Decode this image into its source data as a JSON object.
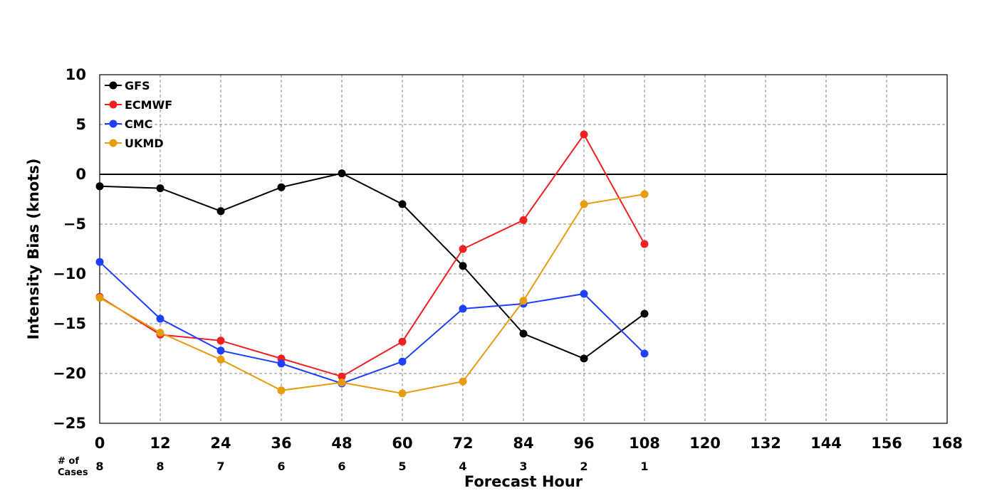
{
  "chart_data": {
    "type": "line",
    "xlabel": "Forecast Hour",
    "ylabel": "Intensity Bias (knots)",
    "xlim": [
      0,
      168
    ],
    "ylim": [
      -25,
      10
    ],
    "xticks": [
      0,
      12,
      24,
      36,
      48,
      60,
      72,
      84,
      96,
      108,
      120,
      132,
      144,
      156,
      168
    ],
    "yticks": [
      10,
      5,
      0,
      -5,
      -10,
      -15,
      -20,
      -25
    ],
    "ytick_labels": [
      "10",
      "5",
      "0",
      "−5",
      "−10",
      "−15",
      "−20",
      "−25"
    ],
    "grid": true,
    "zero_line": true,
    "legend_position": "top-left",
    "x": [
      0,
      12,
      24,
      36,
      48,
      60,
      72,
      84,
      96,
      108
    ],
    "series": [
      {
        "name": "GFS",
        "color": "#000000",
        "values": [
          -1.2,
          -1.4,
          -3.7,
          -1.3,
          0.1,
          -3.0,
          -9.2,
          -16.0,
          -18.5,
          -14.0
        ]
      },
      {
        "name": "ECMWF",
        "color": "#f02020",
        "values": [
          -12.3,
          -16.1,
          -16.7,
          -18.5,
          -20.3,
          -16.8,
          -7.5,
          -4.6,
          4.0,
          -7.0
        ]
      },
      {
        "name": "CMC",
        "color": "#1f3fff",
        "values": [
          -8.8,
          -14.5,
          -17.7,
          -19.0,
          -21.0,
          -18.8,
          -13.5,
          -13.0,
          -12.0,
          -18.0
        ]
      },
      {
        "name": "UKMD",
        "color": "#e69c0f",
        "values": [
          -12.4,
          -15.9,
          -18.6,
          -21.7,
          -20.9,
          -22.0,
          -20.8,
          -12.7,
          -3.0,
          -2.0
        ]
      }
    ],
    "cases": {
      "title_line1": "# of",
      "title_line2": "Cases",
      "x": [
        0,
        12,
        24,
        36,
        48,
        60,
        72,
        84,
        96,
        108
      ],
      "values": [
        "8",
        "8",
        "7",
        "6",
        "6",
        "5",
        "4",
        "3",
        "2",
        "1"
      ]
    }
  }
}
